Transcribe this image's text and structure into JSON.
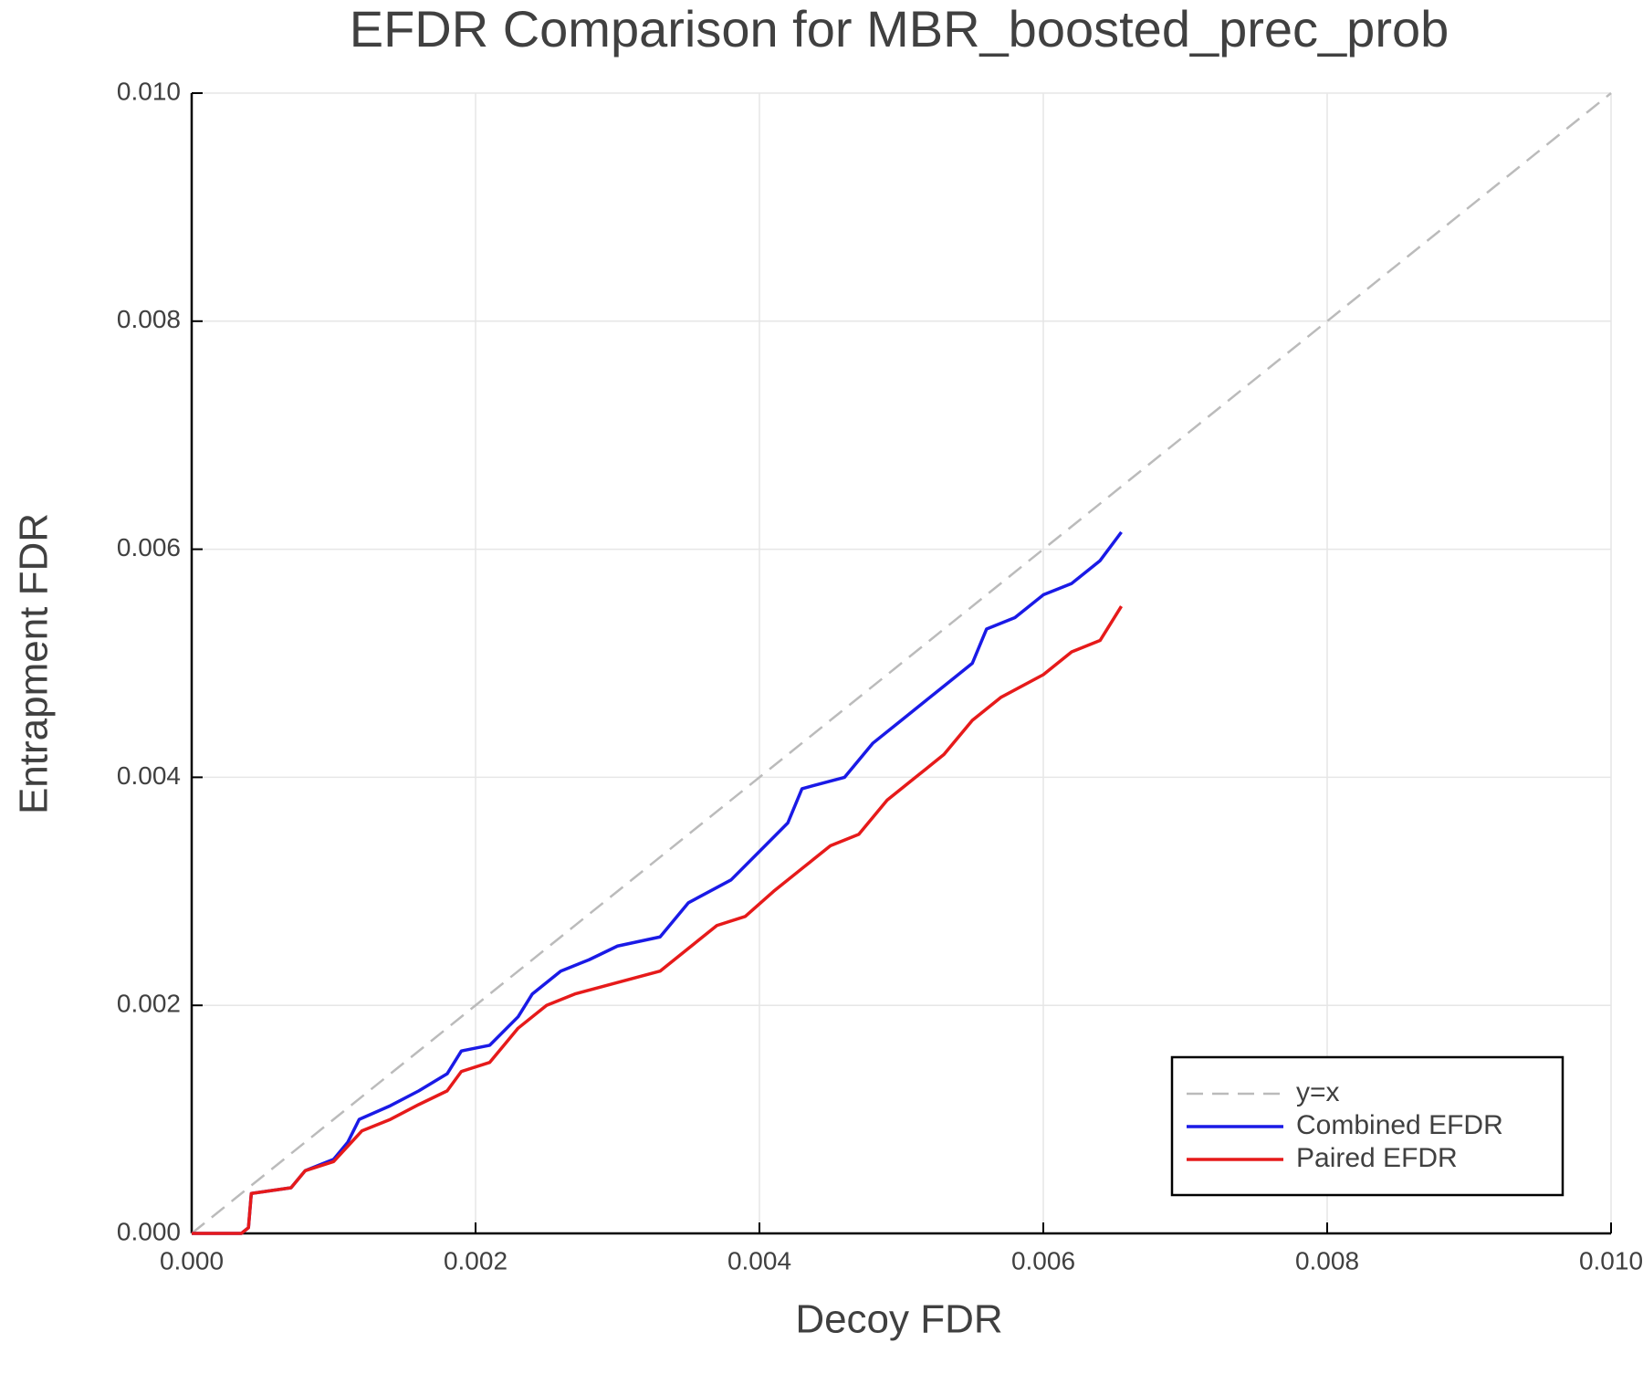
{
  "chart_data": {
    "type": "line",
    "title": "EFDR Comparison for MBR_boosted_prec_prob",
    "xlabel": "Decoy FDR",
    "ylabel": "Entrapment FDR",
    "xlim": [
      0,
      0.01
    ],
    "ylim": [
      0,
      0.01
    ],
    "xticks": [
      {
        "value": 0,
        "label": "0.000"
      },
      0.002,
      0.004,
      0.006,
      0.008,
      {
        "value": 0.01,
        "label": "0.010"
      }
    ],
    "yticks": [
      {
        "value": 0,
        "label": "0.000"
      },
      0.002,
      0.004,
      0.006,
      0.008,
      {
        "value": 0.01,
        "label": "0.010"
      }
    ],
    "grid": true,
    "legend": "bottom right",
    "series": [
      {
        "name": "y=x",
        "color": "#bbbbbb",
        "dashed": true,
        "x": [
          0,
          0.01
        ],
        "values": [
          0,
          0.01
        ]
      },
      {
        "name": "Combined EFDR",
        "color": "#1a1ae6",
        "x": [
          0,
          0.00035,
          0.0004,
          0.00042,
          0.0007,
          0.0008,
          0.001,
          0.0011,
          0.00118,
          0.0014,
          0.0016,
          0.0018,
          0.0019,
          0.0021,
          0.0023,
          0.0024,
          0.0026,
          0.0028,
          0.003,
          0.0033,
          0.0035,
          0.0038,
          0.004,
          0.0042,
          0.0043,
          0.0046,
          0.0048,
          0.005,
          0.0053,
          0.0055,
          0.0056,
          0.0058,
          0.006,
          0.0062,
          0.0064,
          0.00655
        ],
        "values": [
          0,
          0,
          5e-05,
          0.00035,
          0.0004,
          0.00055,
          0.00065,
          0.0008,
          0.001,
          0.00112,
          0.00125,
          0.0014,
          0.0016,
          0.00165,
          0.0019,
          0.0021,
          0.0023,
          0.0024,
          0.00252,
          0.0026,
          0.0029,
          0.0031,
          0.00335,
          0.0036,
          0.0039,
          0.004,
          0.0043,
          0.0045,
          0.0048,
          0.005,
          0.0053,
          0.0054,
          0.0056,
          0.0057,
          0.0059,
          0.00615
        ]
      },
      {
        "name": "Paired EFDR",
        "color": "#e61a1a",
        "x": [
          0,
          0.00035,
          0.0004,
          0.00042,
          0.0007,
          0.0008,
          0.001,
          0.0012,
          0.0014,
          0.0016,
          0.0018,
          0.0019,
          0.0021,
          0.0023,
          0.0025,
          0.0027,
          0.003,
          0.0033,
          0.0035,
          0.0037,
          0.0039,
          0.0041,
          0.0043,
          0.0045,
          0.0047,
          0.0049,
          0.0051,
          0.0053,
          0.0055,
          0.0057,
          0.006,
          0.0062,
          0.0064,
          0.00655
        ],
        "values": [
          0,
          0,
          5e-05,
          0.00035,
          0.0004,
          0.00055,
          0.00063,
          0.0009,
          0.001,
          0.00113,
          0.00125,
          0.00142,
          0.0015,
          0.0018,
          0.002,
          0.0021,
          0.0022,
          0.0023,
          0.0025,
          0.0027,
          0.00278,
          0.003,
          0.0032,
          0.0034,
          0.0035,
          0.0038,
          0.004,
          0.0042,
          0.0045,
          0.0047,
          0.0049,
          0.0051,
          0.0052,
          0.0055
        ]
      }
    ]
  }
}
